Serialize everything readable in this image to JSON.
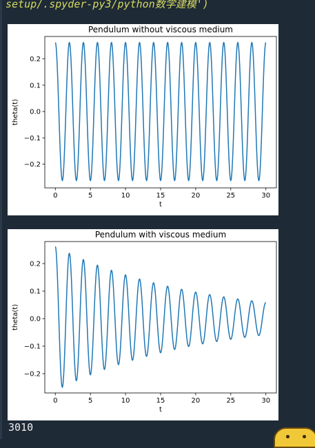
{
  "console": {
    "header_text": "setup/.spyder-py3/python数学建模')",
    "output_text": "3010"
  },
  "chart_data": [
    {
      "type": "line",
      "title": "Pendulum without viscous medium",
      "xlabel": "t",
      "ylabel": "theta(t)",
      "xlim": [
        -1.5,
        31.5
      ],
      "ylim": [
        -0.29,
        0.285
      ],
      "xticks": [
        "0",
        "5",
        "10",
        "15",
        "20",
        "25",
        "30"
      ],
      "yticks": [
        "−0.2",
        "−0.1",
        "0.0",
        "0.1",
        "0.2"
      ],
      "grid": false,
      "series": [
        {
          "color": "#1f77b4",
          "model": "undamped sinusoid",
          "amplitude": 0.262,
          "period": 2.0,
          "damping": 0,
          "t_range": [
            0,
            30
          ]
        }
      ]
    },
    {
      "type": "line",
      "title": "Pendulum with viscous medium",
      "xlabel": "t",
      "ylabel": "theta(t)",
      "xlim": [
        -1.5,
        31.5
      ],
      "ylim": [
        -0.27,
        0.28
      ],
      "xticks": [
        "0",
        "5",
        "10",
        "15",
        "20",
        "25",
        "30"
      ],
      "yticks": [
        "−0.2",
        "−0.1",
        "0.0",
        "0.1",
        "0.2"
      ],
      "grid": false,
      "series": [
        {
          "color": "#1f77b4",
          "model": "damped sinusoid",
          "amplitude": 0.262,
          "period": 2.0,
          "damping": 0.05,
          "t_range": [
            0,
            30
          ]
        }
      ]
    }
  ]
}
